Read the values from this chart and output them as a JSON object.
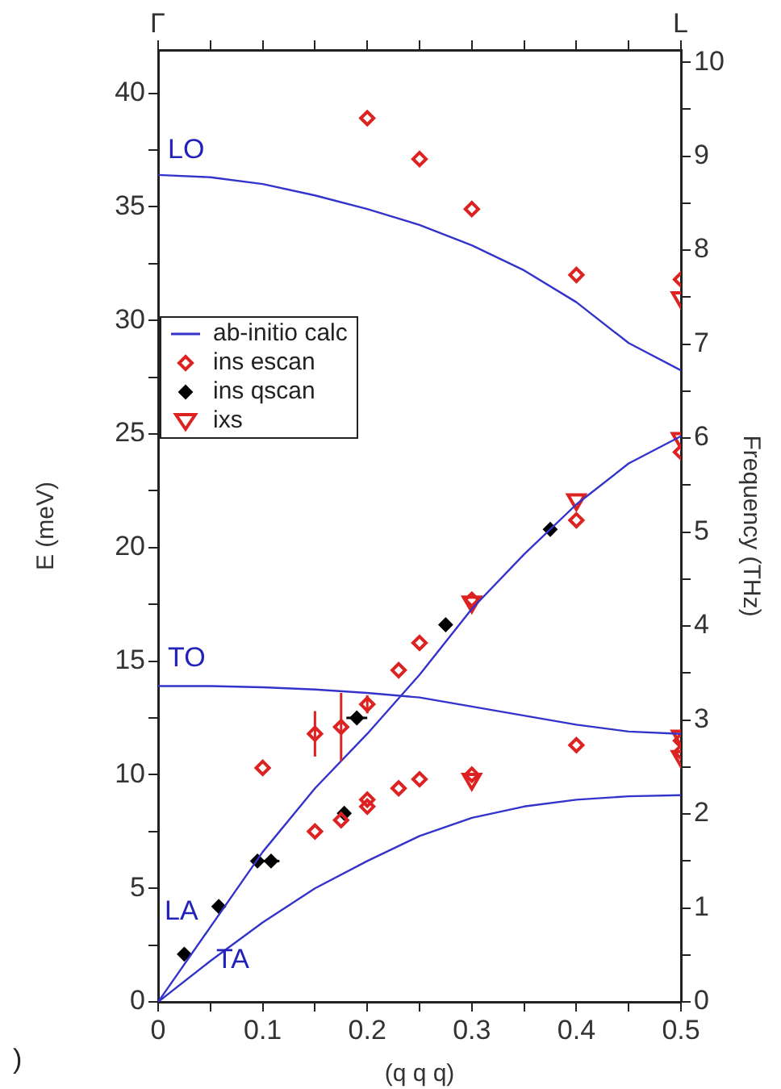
{
  "chart_data": {
    "type": "scatter",
    "xlabel": "(q q q)",
    "ylabel": "E (meV)",
    "y2label": "Frequency (THz)",
    "xlim": [
      0,
      0.5
    ],
    "xticks": [
      0,
      {
        "value": 0.05,
        "label": null
      },
      0.1,
      {
        "value": 0.15,
        "label": null
      },
      0.2,
      {
        "value": 0.25,
        "label": null
      },
      0.3,
      {
        "value": 0.35,
        "label": null
      },
      0.4,
      {
        "value": 0.45,
        "label": null
      },
      0.5
    ],
    "ylim": [
      0,
      41.9
    ],
    "yticks": [
      0,
      {
        "value": 2.5,
        "label": null
      },
      5,
      {
        "value": 7.5,
        "label": null
      },
      10,
      {
        "value": 12.5,
        "label": null
      },
      15,
      {
        "value": 17.5,
        "label": null
      },
      20,
      {
        "value": 22.5,
        "label": null
      },
      25,
      {
        "value": 27.5,
        "label": null
      },
      30,
      {
        "value": 32.5,
        "label": null
      },
      35,
      {
        "value": 37.5,
        "label": null
      },
      40
    ],
    "y2lim": [
      0,
      10.13
    ],
    "y2ticks": [
      0,
      {
        "value": 0.5,
        "label": null
      },
      1,
      {
        "value": 1.5,
        "label": null
      },
      2,
      {
        "value": 2.5,
        "label": null
      },
      3,
      {
        "value": 3.5,
        "label": null
      },
      4,
      {
        "value": 4.5,
        "label": null
      },
      5,
      {
        "value": 5.5,
        "label": null
      },
      6,
      {
        "value": 6.5,
        "label": null
      },
      7,
      {
        "value": 7.5,
        "label": null
      },
      8,
      {
        "value": 8.5,
        "label": null
      },
      9,
      {
        "value": 9.5,
        "label": null
      },
      10
    ],
    "legend": "left",
    "series": [
      {
        "name": "ab-initio calc",
        "type": "line",
        "color": "#3333cc",
        "marker": "none",
        "x": [
          0,
          0.05,
          0.1,
          0.15,
          0.2,
          0.25,
          0.3,
          0.35,
          0.4,
          0.45,
          0.5
        ],
        "values": [
          36.4,
          36.3,
          36.0,
          35.5,
          34.9,
          34.2,
          33.3,
          32.2,
          30.8,
          29.0,
          27.8
        ]
      },
      {
        "type": "line",
        "color": "#3333cc",
        "marker": "none",
        "x": [
          0,
          0.05,
          0.1,
          0.15,
          0.2,
          0.25,
          0.3,
          0.35,
          0.4,
          0.45,
          0.5
        ],
        "values": [
          13.9,
          13.9,
          13.85,
          13.75,
          13.6,
          13.4,
          13.0,
          12.6,
          12.2,
          11.9,
          11.8
        ]
      },
      {
        "type": "line",
        "color": "#3333cc",
        "marker": "none",
        "x": [
          0,
          0.05,
          0.1,
          0.15,
          0.2,
          0.25,
          0.3,
          0.35,
          0.4,
          0.45,
          0.5
        ],
        "values": [
          0,
          3.3,
          6.6,
          9.4,
          11.8,
          14.4,
          17.3,
          19.7,
          21.9,
          23.7,
          24.9
        ]
      },
      {
        "type": "line",
        "color": "#3333cc",
        "marker": "none",
        "x": [
          0,
          0.05,
          0.1,
          0.15,
          0.2,
          0.25,
          0.3,
          0.35,
          0.4,
          0.45,
          0.5
        ],
        "values": [
          0,
          1.8,
          3.5,
          5.0,
          6.2,
          7.3,
          8.1,
          8.6,
          8.9,
          9.05,
          9.1
        ]
      },
      {
        "name": "ins escan",
        "color": "#dd2222",
        "marker": "diamond",
        "x": [
          0.2,
          0.25,
          0.3,
          0.4,
          0.1,
          0.15,
          0.175,
          0.2,
          0.23,
          0.25,
          0.3,
          0.15,
          0.175,
          0.2,
          0.2,
          0.23,
          0.25,
          0.3,
          0.4,
          0.4,
          0.5,
          0.5,
          0.5,
          0.5
        ],
        "values": [
          38.9,
          37.1,
          34.9,
          32.0,
          10.3,
          11.8,
          12.1,
          13.1,
          14.6,
          15.8,
          17.7,
          7.5,
          8.0,
          8.6,
          8.9,
          9.4,
          9.8,
          10.0,
          11.3,
          21.2,
          24.2,
          11.0,
          11.5,
          31.8
        ],
        "errors": [
          null,
          null,
          null,
          null,
          null,
          1.0,
          1.5,
          0.4,
          null,
          null,
          null,
          null,
          null,
          null,
          null,
          null,
          null,
          null,
          null,
          null,
          null,
          null,
          null,
          null
        ]
      },
      {
        "name": "ins qscan",
        "color": "#000000",
        "marker": "diamond",
        "x": [
          0.025,
          0.058,
          0.095,
          0.108,
          0.19,
          0.178,
          0.275,
          0.375
        ],
        "values": [
          2.1,
          4.2,
          6.2,
          6.2,
          12.5,
          8.3,
          16.6,
          20.8
        ],
        "xerrors": [
          null,
          null,
          null,
          0.008,
          0.01,
          null,
          null,
          null
        ]
      },
      {
        "name": "ixs",
        "color": "#dd2222",
        "marker": "triangle",
        "x": [
          0.5,
          0.5,
          0.4,
          0.3,
          0.3,
          0.5,
          0.5
        ],
        "values": [
          31.0,
          24.8,
          22.1,
          17.6,
          9.8,
          10.8,
          11.7
        ]
      }
    ],
    "annotations": [
      "LO",
      "TO",
      "LA",
      "TA",
      "Γ",
      "L",
      ")"
    ]
  }
}
